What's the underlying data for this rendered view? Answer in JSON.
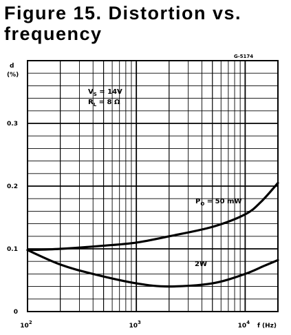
{
  "figure": {
    "title_line1": "Figure 15. Distortion vs.",
    "title_line2": "frequency"
  },
  "chart_data": {
    "type": "line",
    "ref_code": "G-5174",
    "ylabel_line1": "d",
    "ylabel_line2": "(%)",
    "xlabel": "f (Hz)",
    "x_scale": "log",
    "xlim": [
      100,
      20000
    ],
    "ylim": [
      0,
      0.4
    ],
    "x_tick_labels": [
      {
        "value": 100,
        "base": "10",
        "exp": "2"
      },
      {
        "value": 1000,
        "base": "10",
        "exp": "3"
      },
      {
        "value": 10000,
        "base": "10",
        "exp": "4"
      }
    ],
    "y_ticks": [
      0,
      0.1,
      0.2,
      0.3
    ],
    "y_tick_labels": [
      "0",
      "0.1",
      "0.2",
      "0.3"
    ],
    "grid": true,
    "conditions": {
      "line1_prefix": "V",
      "line1_sub": "S",
      "line1_value": " = 14V",
      "line2_prefix": "R",
      "line2_sub": "L",
      "line2_value": " = 8 Ω"
    },
    "series": [
      {
        "label_prefix": "P",
        "label_sub": "O",
        "label_value": " = 50 mW",
        "points": [
          [
            100,
            0.098
          ],
          [
            200,
            0.1
          ],
          [
            500,
            0.105
          ],
          [
            1000,
            0.11
          ],
          [
            2000,
            0.12
          ],
          [
            5000,
            0.135
          ],
          [
            10000,
            0.155
          ],
          [
            14000,
            0.175
          ],
          [
            20000,
            0.205
          ]
        ]
      },
      {
        "label": "2W",
        "points": [
          [
            100,
            0.098
          ],
          [
            200,
            0.075
          ],
          [
            400,
            0.06
          ],
          [
            1000,
            0.045
          ],
          [
            2000,
            0.04
          ],
          [
            5000,
            0.045
          ],
          [
            10000,
            0.06
          ],
          [
            15000,
            0.073
          ],
          [
            20000,
            0.082
          ]
        ]
      }
    ]
  }
}
